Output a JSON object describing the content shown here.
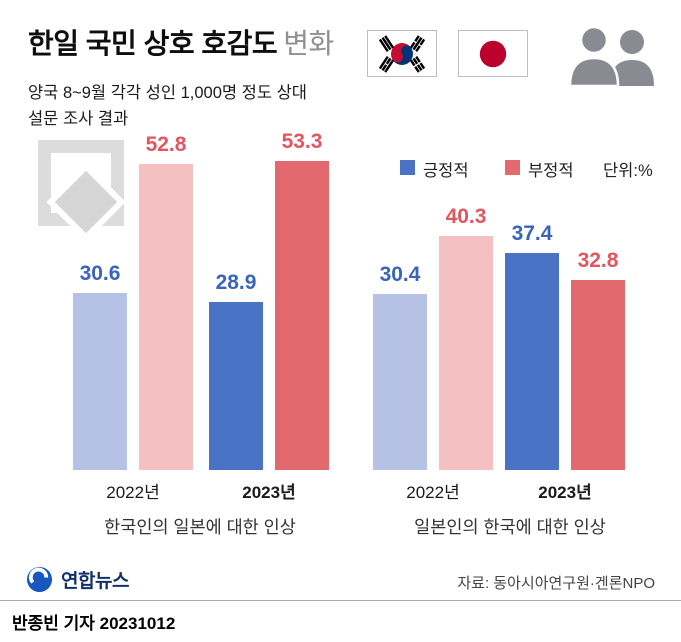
{
  "header": {
    "title": "한일 국민 상호 호감도",
    "title_suffix": "변화",
    "subtitle_line1": "양국 8~9월 각각 성인 1,000명 정도 상대",
    "subtitle_line2": "설문 조사 결과"
  },
  "legend": {
    "positive_label": "긍정적",
    "negative_label": "부정적",
    "unit_label": "단위:%"
  },
  "chart_data": {
    "type": "bar",
    "unit": "%",
    "ylim": [
      0,
      60
    ],
    "grid": false,
    "legend_position": "top-right",
    "series_names": [
      "긍정적",
      "부정적"
    ],
    "colors": {
      "positive_2022": "#b5c2e5",
      "negative_2022": "#f4c0c1",
      "positive_2023": "#4a73c6",
      "negative_2023": "#e2696d",
      "positive_value_label": "#3a63bb",
      "negative_value_label": "#e2565f"
    },
    "groups": [
      {
        "title": "한국인의 일본에 대한 인상",
        "categories": [
          "2022년",
          "2023년"
        ],
        "series": [
          {
            "name": "긍정적",
            "values": [
              30.6,
              28.9
            ]
          },
          {
            "name": "부정적",
            "values": [
              52.8,
              53.3
            ]
          }
        ]
      },
      {
        "title": "일본인의 한국에 대한 인상",
        "categories": [
          "2022년",
          "2023년"
        ],
        "series": [
          {
            "name": "긍정적",
            "values": [
              30.4,
              37.4
            ]
          },
          {
            "name": "부정적",
            "values": [
              40.3,
              32.8
            ]
          }
        ]
      }
    ]
  },
  "icons": {
    "korea_flag": "south-korea-flag",
    "japan_flag": "japan-flag",
    "people": "two-person-silhouette",
    "watermark": "pencil-frame-watermark",
    "logo_mark": "yonhap-circle-logo"
  },
  "footer": {
    "logo_text": "연합뉴스",
    "source": "자료: 동아시아연구원·겐론NPO",
    "byline": "반종빈 기자 20231012"
  }
}
